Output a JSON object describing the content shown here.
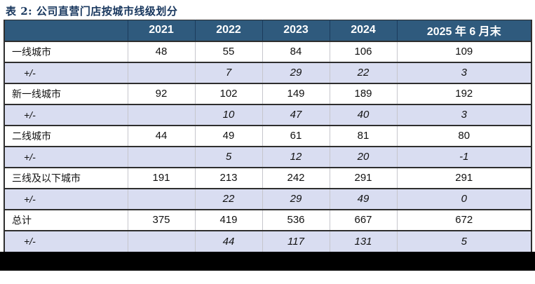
{
  "title": "表 2: 公司直营门店按城市线级划分",
  "colors": {
    "header_bg": "#2F5A7D",
    "header_separator": "#1C3C5C",
    "delta_row_bg": "#D9DDF1",
    "title_color": "#17365D",
    "grid_line_dark": "#2e2e2e",
    "grid_line_light": "#c6c6cc",
    "bottom_bar": "#000000"
  },
  "table": {
    "columns": [
      "",
      "2021",
      "2022",
      "2023",
      "2024",
      "2025 年 6 月末"
    ],
    "rows": [
      {
        "label": "一线城市",
        "type": "city",
        "values": [
          "48",
          "55",
          "84",
          "106",
          "109"
        ]
      },
      {
        "label": "+/-",
        "type": "delta",
        "values": [
          "",
          "7",
          "29",
          "22",
          "3"
        ]
      },
      {
        "label": "新一线城市",
        "type": "city",
        "values": [
          "92",
          "102",
          "149",
          "189",
          "192"
        ]
      },
      {
        "label": "+/-",
        "type": "delta",
        "values": [
          "",
          "10",
          "47",
          "40",
          "3"
        ]
      },
      {
        "label": "二线城市",
        "type": "city",
        "values": [
          "44",
          "49",
          "61",
          "81",
          "80"
        ]
      },
      {
        "label": "+/-",
        "type": "delta",
        "values": [
          "",
          "5",
          "12",
          "20",
          "-1"
        ]
      },
      {
        "label": "三线及以下城市",
        "type": "city",
        "values": [
          "191",
          "213",
          "242",
          "291",
          "291"
        ]
      },
      {
        "label": "+/-",
        "type": "delta",
        "values": [
          "",
          "22",
          "29",
          "49",
          "0"
        ]
      },
      {
        "label": "总计",
        "type": "city",
        "values": [
          "375",
          "419",
          "536",
          "667",
          "672"
        ]
      },
      {
        "label": "+/-",
        "type": "delta",
        "values": [
          "",
          "44",
          "117",
          "131",
          "5"
        ]
      }
    ]
  }
}
